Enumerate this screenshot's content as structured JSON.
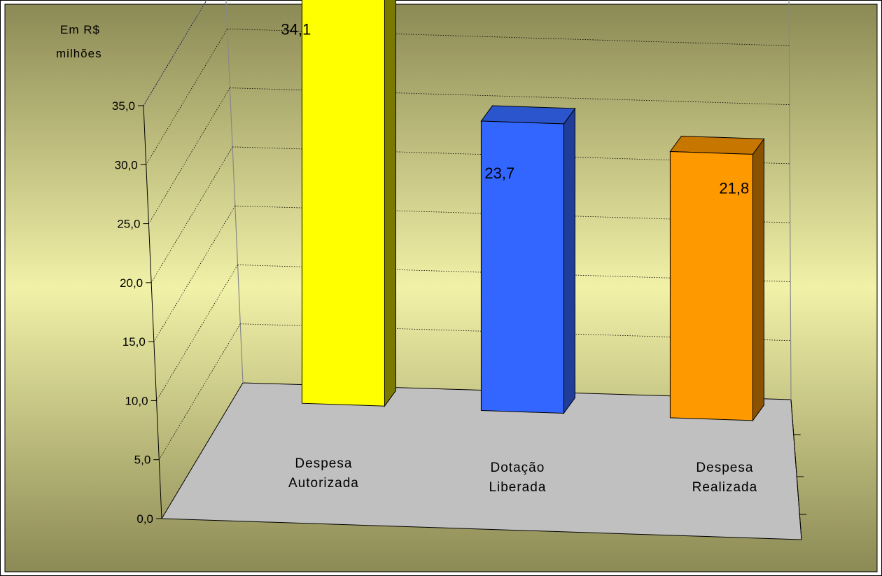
{
  "chart_data": {
    "type": "bar",
    "title": "",
    "xlabel": "",
    "ylabel": "",
    "unit_label": [
      "Em  R$",
      "milhões"
    ],
    "categories": [
      [
        "Despesa",
        "Autorizada"
      ],
      [
        "Dotação",
        "Liberada"
      ],
      [
        "Despesa",
        "Realizada"
      ]
    ],
    "values": [
      34.1,
      23.7,
      21.8
    ],
    "data_labels": [
      "34,1",
      "23,7",
      "21,8"
    ],
    "yticks": [
      "0,0",
      "5,0",
      "10,0",
      "15,0",
      "20,0",
      "25,0",
      "30,0",
      "35,0"
    ],
    "ylim": [
      0,
      35
    ],
    "grid": true,
    "legend": "none",
    "style": "3d-column",
    "colors": {
      "background_top": "#8c8a55",
      "background_mid": "#f1f1a8",
      "floor": "#c0c0c0",
      "bars": [
        {
          "front": "#ffff00",
          "side": "#7a7a00",
          "top": "#cfcf00"
        },
        {
          "front": "#3366ff",
          "side": "#1f3d99",
          "top": "#2a55cc"
        },
        {
          "front": "#ff9900",
          "side": "#8a5200",
          "top": "#c77700"
        }
      ]
    }
  }
}
